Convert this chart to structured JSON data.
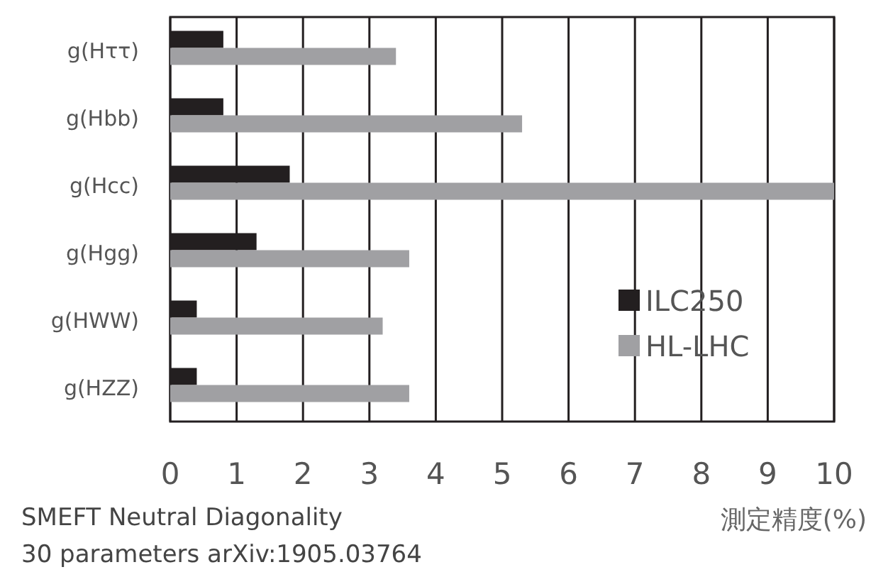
{
  "chart_data": {
    "type": "bar",
    "orientation": "horizontal",
    "categories": [
      "g(Hττ)",
      "g(Hbb)",
      "g(Hcc)",
      "g(Hgg)",
      "g(HWW)",
      "g(HZZ)"
    ],
    "series": [
      {
        "name": "ILC250",
        "color": "#231f20",
        "values": [
          0.8,
          0.8,
          1.8,
          1.3,
          0.4,
          0.4
        ]
      },
      {
        "name": "HL-LHC",
        "color": "#a0a0a3",
        "values": [
          3.4,
          5.3,
          10,
          3.6,
          3.2,
          3.6
        ]
      }
    ],
    "xlim": [
      0,
      10
    ],
    "xticks": [
      0,
      1,
      2,
      3,
      4,
      5,
      6,
      7,
      8,
      9,
      10
    ],
    "xlabel": "測定精度(%)",
    "annotations": [
      "SMEFT Neutral Diagonality",
      "30 parameters arXiv:1905.03764"
    ],
    "grid": "x",
    "legend": "right"
  }
}
